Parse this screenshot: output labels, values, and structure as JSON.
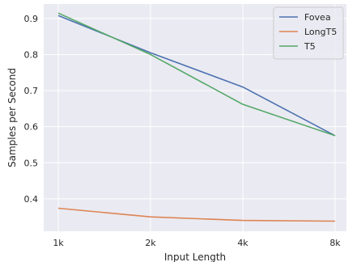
{
  "chart_data": {
    "type": "line",
    "title": "",
    "xlabel": "Input Length",
    "ylabel": "Samples per Second",
    "categories": [
      "1k",
      "2k",
      "4k",
      "8k"
    ],
    "series": [
      {
        "name": "Fovea",
        "color": "#4c72b0",
        "values": [
          0.908,
          0.805,
          0.71,
          0.575
        ]
      },
      {
        "name": "LongT5",
        "color": "#dd8452",
        "values": [
          0.374,
          0.35,
          0.34,
          0.338
        ]
      },
      {
        "name": "T5",
        "color": "#55a868",
        "values": [
          0.915,
          0.8,
          0.662,
          0.575
        ]
      }
    ],
    "yticks": [
      0.4,
      0.5,
      0.6,
      0.7,
      0.8,
      0.9
    ],
    "ytick_labels": [
      "0.4",
      "0.5",
      "0.6",
      "0.7",
      "0.8",
      "0.9"
    ],
    "ylim": [
      0.31,
      0.94
    ],
    "grid": true,
    "legend_position": "top-right",
    "background": "#eaeaf2"
  }
}
